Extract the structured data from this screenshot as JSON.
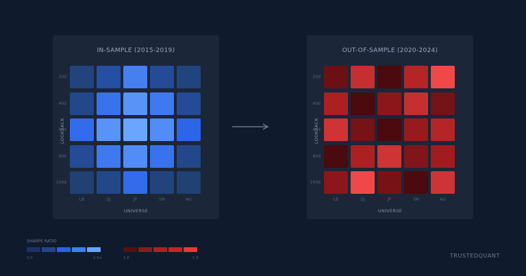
{
  "chart_data": [
    {
      "type": "heatmap",
      "title": "IN-SAMPLE (2015-2019)",
      "xlabel": "UNIVERSE",
      "ylabel": "LOOKBACK",
      "x_categories": [
        "LB",
        "DJ",
        "JP",
        "SM",
        "AU"
      ],
      "y_categories": [
        "20d",
        "40d",
        "60d",
        "80d",
        "100d"
      ],
      "values": [
        [
          0.6,
          0.9,
          1.9,
          0.8,
          0.6
        ],
        [
          0.7,
          1.7,
          2.2,
          1.8,
          0.8
        ],
        [
          1.6,
          2.2,
          2.5,
          2.1,
          1.5
        ],
        [
          0.8,
          1.8,
          2.1,
          1.7,
          0.7
        ],
        [
          0.5,
          0.7,
          1.6,
          0.6,
          0.5
        ]
      ]
    },
    {
      "type": "heatmap",
      "title": "OUT-OF-SAMPLE (2020-2024)",
      "xlabel": "UNIVERSE",
      "ylabel": "LOOKBACK",
      "x_categories": [
        "LB",
        "DJ",
        "JP",
        "SM",
        "AU"
      ],
      "y_categories": [
        "20d",
        "40d",
        "60d",
        "80d",
        "100d"
      ],
      "values": [
        [
          0.4,
          1.3,
          0.1,
          1.1,
          1.8
        ],
        [
          1.0,
          0.1,
          0.7,
          1.3,
          0.5
        ],
        [
          1.4,
          0.5,
          0.1,
          0.8,
          1.1
        ],
        [
          0.1,
          1.0,
          1.4,
          0.6,
          0.9
        ],
        [
          0.7,
          1.8,
          0.5,
          0.1,
          1.4
        ]
      ]
    }
  ],
  "legend": {
    "title": "SHARPE RATIO",
    "blue_swatches": [
      "#1e3166",
      "#23458a",
      "#2a62e8",
      "#3b7ef5",
      "#67a4f8"
    ],
    "blue_labels": [
      "0.0",
      "2.5+"
    ],
    "red_swatches": [
      "#5a0f12",
      "#8a1c1e",
      "#b01f22",
      "#c92325",
      "#e8383a"
    ],
    "red_labels": [
      "1.0",
      "1.0"
    ]
  },
  "brand": "TRUSTEDQUANT",
  "colors": {
    "blue_scale": [
      "#1f3d64",
      "#2a62e8",
      "#6aa6ff"
    ],
    "red_scale": [
      "#4a0a0e",
      "#a81d20",
      "#f04848"
    ]
  }
}
